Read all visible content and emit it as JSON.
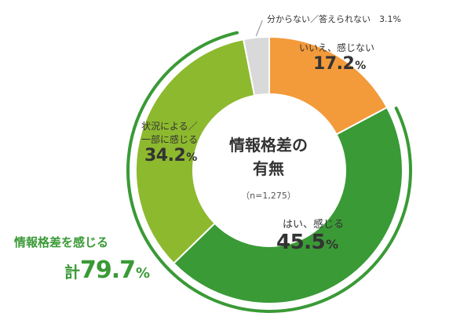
{
  "chart_data": {
    "type": "pie",
    "title": "情報格差の有無",
    "title_lines": [
      "情報格差の",
      "有無"
    ],
    "sample_note": "（n=1,275）",
    "unit": "%",
    "slices": [
      {
        "label": "いいえ、感じない",
        "label_lines": [
          "いいえ、感じない"
        ],
        "value": 17.2,
        "value_text": "17.2",
        "color": "#f39a3a"
      },
      {
        "label": "はい、感じる",
        "label_lines": [
          "はい、感じる"
        ],
        "value": 45.5,
        "value_text": "45.5",
        "color": "#3a9a36"
      },
      {
        "label": "状況による／一部に感じる",
        "label_lines": [
          "状況による／",
          "一部に感じる"
        ],
        "value": 34.2,
        "value_text": "34.2",
        "color": "#8db92e"
      },
      {
        "label": "分からない／答えられない",
        "label_lines": [
          "分からない／答えられない"
        ],
        "value": 3.1,
        "value_text": "3.1",
        "color": "#d9d9d9"
      }
    ],
    "unknown_label": "分からない／答えられない　3.1%",
    "total": {
      "label": "情報格差を感じる",
      "prefix": "計",
      "value": 79.7,
      "value_text": "79.7",
      "color": "#3a9a36"
    }
  }
}
